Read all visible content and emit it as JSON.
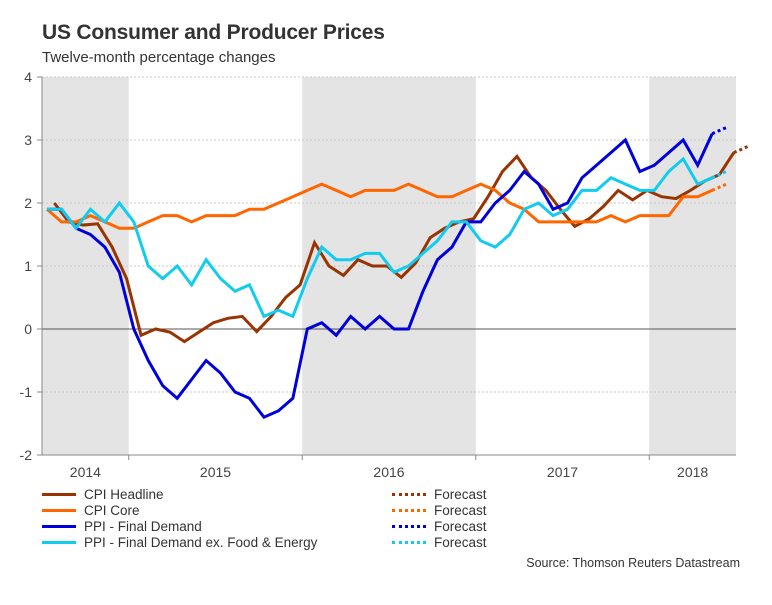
{
  "chart_data": {
    "type": "line",
    "title": "US Consumer and Producer Prices",
    "subtitle": "Twelve-month percentage changes",
    "xlabel": "",
    "ylabel": "",
    "ylim": [
      -2,
      4
    ],
    "yticks": [
      -2,
      -1,
      0,
      1,
      2,
      3,
      4
    ],
    "x_start": "2014-07",
    "x_unit": "month",
    "xlim_months": [
      0,
      48
    ],
    "year_labels": [
      {
        "label": "2014",
        "start": 0,
        "end": 6,
        "shaded": true
      },
      {
        "label": "2015",
        "start": 6,
        "end": 18,
        "shaded": false
      },
      {
        "label": "2016",
        "start": 18,
        "end": 30,
        "shaded": true
      },
      {
        "label": "2017",
        "start": 30,
        "end": 42,
        "shaded": false
      },
      {
        "label": "2018",
        "start": 42,
        "end": 48,
        "shaded": true
      }
    ],
    "grid": "horizontal-dotted",
    "legend_position": "bottom",
    "series": [
      {
        "name": "CPI Headline",
        "color": "#993300",
        "x_offset": 0.5,
        "values": [
          2.0,
          1.7,
          1.65,
          1.67,
          1.3,
          0.8,
          -0.1,
          0.0,
          -0.05,
          -0.2,
          -0.05,
          0.1,
          0.17,
          0.2,
          -0.04,
          0.2,
          0.5,
          0.7,
          1.37,
          1.0,
          0.85,
          1.1,
          1.0,
          1.0,
          0.82,
          1.05,
          1.45,
          1.6,
          1.7,
          1.75,
          2.1,
          2.5,
          2.74,
          2.4,
          2.2,
          1.9,
          1.63,
          1.75,
          1.95,
          2.2,
          2.05,
          2.2,
          2.1,
          2.07,
          2.2,
          2.35,
          2.45,
          2.8
        ],
        "forecast": [
          2.8,
          2.9
        ]
      },
      {
        "name": "CPI Core",
        "color": "#FF6600",
        "x_offset": 0,
        "values": [
          1.9,
          1.7,
          1.7,
          1.8,
          1.7,
          1.6,
          1.6,
          1.7,
          1.8,
          1.8,
          1.7,
          1.8,
          1.8,
          1.8,
          1.9,
          1.9,
          2.0,
          2.1,
          2.2,
          2.3,
          2.2,
          2.1,
          2.2,
          2.2,
          2.2,
          2.3,
          2.2,
          2.1,
          2.1,
          2.2,
          2.3,
          2.2,
          2.0,
          1.9,
          1.7,
          1.7,
          1.7,
          1.7,
          1.7,
          1.8,
          1.7,
          1.8,
          1.8,
          1.8,
          2.1,
          2.1,
          2.2
        ],
        "forecast": [
          2.2,
          2.3
        ]
      },
      {
        "name": "PPI - Final Demand",
        "color": "#0000DD",
        "x_offset": 0,
        "values": [
          1.9,
          1.9,
          1.6,
          1.5,
          1.3,
          0.9,
          0.0,
          -0.5,
          -0.9,
          -1.1,
          -0.8,
          -0.5,
          -0.7,
          -1.0,
          -1.1,
          -1.4,
          -1.3,
          -1.1,
          0.0,
          0.1,
          -0.1,
          0.2,
          0.0,
          0.2,
          0.0,
          0.0,
          0.6,
          1.1,
          1.3,
          1.7,
          1.7,
          2.0,
          2.2,
          2.5,
          2.3,
          1.9,
          2.0,
          2.4,
          2.6,
          2.8,
          3.0,
          2.5,
          2.6,
          2.8,
          3.0,
          2.6,
          3.1
        ],
        "forecast": [
          3.1,
          3.2
        ]
      },
      {
        "name": "PPI - Final Demand ex. Food & Energy",
        "color": "#11CCEE",
        "x_offset": 0,
        "values": [
          1.9,
          1.9,
          1.6,
          1.9,
          1.7,
          2.0,
          1.7,
          1.0,
          0.8,
          1.0,
          0.7,
          1.1,
          0.8,
          0.6,
          0.7,
          0.2,
          0.3,
          0.2,
          0.8,
          1.3,
          1.1,
          1.1,
          1.2,
          1.2,
          0.9,
          1.0,
          1.2,
          1.4,
          1.7,
          1.7,
          1.4,
          1.3,
          1.5,
          1.9,
          2.0,
          1.8,
          1.9,
          2.2,
          2.2,
          2.4,
          2.3,
          2.2,
          2.2,
          2.5,
          2.7,
          2.3,
          2.4
        ],
        "forecast": [
          2.4,
          2.5
        ]
      }
    ],
    "legend": [
      {
        "label": "CPI Headline",
        "color": "#993300",
        "style": "solid"
      },
      {
        "label": "CPI Core",
        "color": "#FF6600",
        "style": "solid"
      },
      {
        "label": "PPI - Final Demand",
        "color": "#0000DD",
        "style": "solid"
      },
      {
        "label": "PPI - Final Demand ex. Food & Energy",
        "color": "#11CCEE",
        "style": "solid"
      },
      {
        "label": "Forecast",
        "color": "#993300",
        "style": "dotted"
      },
      {
        "label": "Forecast",
        "color": "#FF6600",
        "style": "dotted"
      },
      {
        "label": "Forecast",
        "color": "#0000DD",
        "style": "dotted"
      },
      {
        "label": "Forecast",
        "color": "#11CCEE",
        "style": "dotted"
      }
    ],
    "source": "Source: Thomson Reuters Datastream"
  }
}
